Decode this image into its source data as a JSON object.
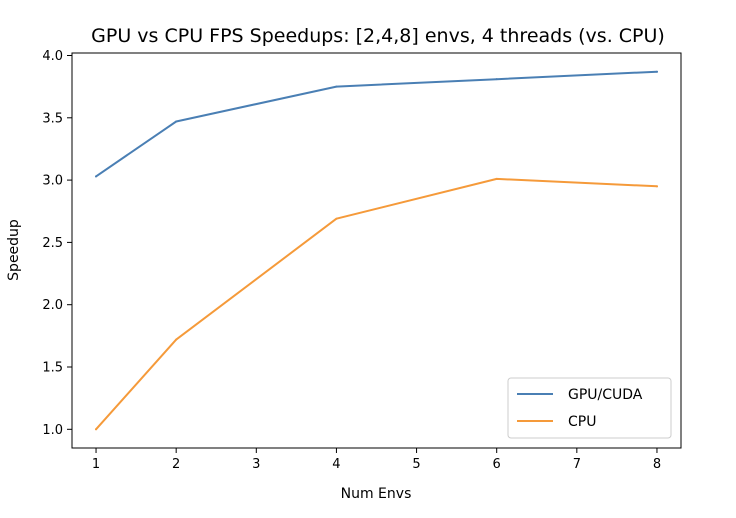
{
  "chart_data": {
    "type": "line",
    "title": "GPU vs CPU FPS Speedups: [2,4,8] envs, 4 threads (vs. CPU)",
    "xlabel": "Num Envs",
    "ylabel": "Speedup",
    "xlim": [
      0.7,
      8.3
    ],
    "ylim": [
      0.85,
      4.02
    ],
    "xticks": [
      1,
      2,
      3,
      4,
      5,
      6,
      7,
      8
    ],
    "yticks": [
      1.0,
      1.5,
      2.0,
      2.5,
      3.0,
      3.5,
      4.0
    ],
    "xtick_labels": [
      "1",
      "2",
      "3",
      "4",
      "5",
      "6",
      "7",
      "8"
    ],
    "ytick_labels": [
      "1.0",
      "1.5",
      "2.0",
      "2.5",
      "3.0",
      "3.5",
      "4.0"
    ],
    "grid": false,
    "legend_position": "lower-right",
    "series": [
      {
        "name": "GPU/CUDA",
        "color": "#4a7fb4",
        "x": [
          1,
          2,
          4,
          6,
          8
        ],
        "y": [
          3.03,
          3.47,
          3.75,
          3.81,
          3.87
        ]
      },
      {
        "name": "CPU",
        "color": "#f59a3a",
        "x": [
          1,
          2,
          4,
          6,
          8
        ],
        "y": [
          1.0,
          1.72,
          2.69,
          3.01,
          2.95
        ]
      }
    ]
  }
}
